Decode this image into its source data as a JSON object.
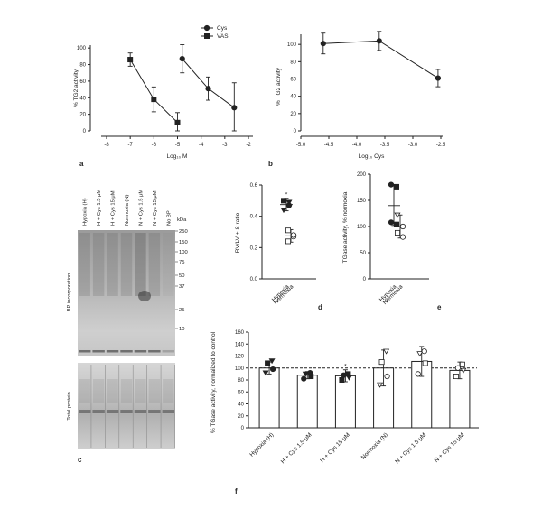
{
  "panel_letters": {
    "a": "a",
    "b": "b",
    "c": "c",
    "d": "d",
    "e": "e",
    "f": "f"
  },
  "chart_data": [
    {
      "id": "a",
      "type": "scatter",
      "ylabel": "% TG2 activity",
      "xlabel": "Log₁₀ M",
      "xlim": [
        -8,
        -2
      ],
      "ylim": [
        0,
        110
      ],
      "x_ticks": [
        -8,
        -7,
        -6,
        -5,
        -4,
        -3,
        -2
      ],
      "y_ticks": [
        0,
        20,
        40,
        60,
        80,
        100
      ],
      "legend": {
        "position": "top-right",
        "entries": [
          "Cys",
          "VAS"
        ]
      },
      "series": [
        {
          "name": "Cys",
          "marker": "circle",
          "x": [
            -4.8,
            -3.7,
            -2.6
          ],
          "y": [
            87,
            51,
            28
          ],
          "err": [
            17,
            14,
            30
          ]
        },
        {
          "name": "VAS",
          "marker": "square",
          "x": [
            -7.0,
            -6.0,
            -5.0
          ],
          "y": [
            86,
            38,
            10
          ],
          "err": [
            8,
            15,
            12
          ]
        }
      ]
    },
    {
      "id": "b",
      "type": "line",
      "ylabel": "% TG2 activity",
      "xlabel": "Log₁₀ Cys",
      "xlim": [
        -5.0,
        -2.5
      ],
      "ylim": [
        0,
        120
      ],
      "x_ticks": [
        -5.0,
        -4.5,
        -4.0,
        -3.5,
        -3.0,
        -2.5
      ],
      "y_ticks": [
        0,
        20,
        40,
        60,
        80,
        100
      ],
      "series": [
        {
          "marker": "circle",
          "x": [
            -4.6,
            -3.6,
            -2.55
          ],
          "y": [
            101,
            104,
            61
          ],
          "err": [
            12,
            11,
            10
          ]
        }
      ]
    },
    {
      "id": "d",
      "type": "scatter",
      "ylabel": "RV/LV + S ratio",
      "ylim": [
        0,
        0.6
      ],
      "y_ticks": [
        0.0,
        0.2,
        0.4,
        0.6
      ],
      "categories": [
        "Hypoxia",
        "Normoxia"
      ],
      "annotation": "*",
      "groups": [
        {
          "mean": 0.475,
          "err": 0.04,
          "points": [
            0.44,
            0.47,
            0.5,
            0.49
          ]
        },
        {
          "mean": 0.275,
          "err": 0.04,
          "points": [
            0.24,
            0.27,
            0.31,
            0.28
          ]
        }
      ]
    },
    {
      "id": "e",
      "type": "scatter",
      "ylabel": "TGase activity, % normoxia",
      "ylim": [
        0,
        200
      ],
      "y_ticks": [
        0,
        50,
        100,
        150,
        200
      ],
      "categories": [
        "Hypoxia",
        "Normoxia"
      ],
      "groups": [
        {
          "mean": 140,
          "err": 38,
          "points": [
            180,
            176,
            108,
            104
          ]
        },
        {
          "mean": 100,
          "err": 22,
          "points": [
            122,
            100,
            88,
            80
          ]
        }
      ]
    },
    {
      "id": "f",
      "type": "bar",
      "ylabel": "% TGase activity, normalized to control",
      "ylim": [
        0,
        160
      ],
      "y_ticks": [
        0,
        20,
        40,
        60,
        80,
        100,
        120,
        140,
        160
      ],
      "reference_line": 100,
      "categories": [
        "Hypoxia (H)",
        "H + Cys 1.5 μM",
        "H + Cys 15 μM",
        "Normoxia (N)",
        "N + Cys 1.5 μM",
        "N + Cys 15 μM"
      ],
      "values": [
        100,
        88,
        87,
        100,
        111,
        96
      ],
      "err": [
        10,
        6,
        10,
        30,
        25,
        14
      ],
      "annotations": [
        "",
        "",
        "*",
        "",
        "",
        ""
      ],
      "points": [
        [
          92,
          98,
          108,
          112
        ],
        [
          82,
          86,
          90,
          92
        ],
        [
          80,
          84,
          88,
          90
        ],
        [
          72,
          86,
          110,
          128
        ],
        [
          90,
          108,
          124,
          128
        ],
        [
          86,
          96,
          100,
          106
        ]
      ]
    }
  ],
  "blot": {
    "lane_labels": [
      "Hypoxia (H)",
      "H + Cys 1.5 μM",
      "H + Cys 15 μM",
      "Normoxia (N)",
      "N + Cys 1.5 μM",
      "N + Cys 15 μM",
      "No BP"
    ],
    "kda_label": "kDa",
    "markers": [
      "250",
      "150",
      "100",
      "75",
      "50",
      "37",
      "25",
      "10"
    ],
    "upper_label": "BP incorporation",
    "lower_label": "Total protein"
  }
}
